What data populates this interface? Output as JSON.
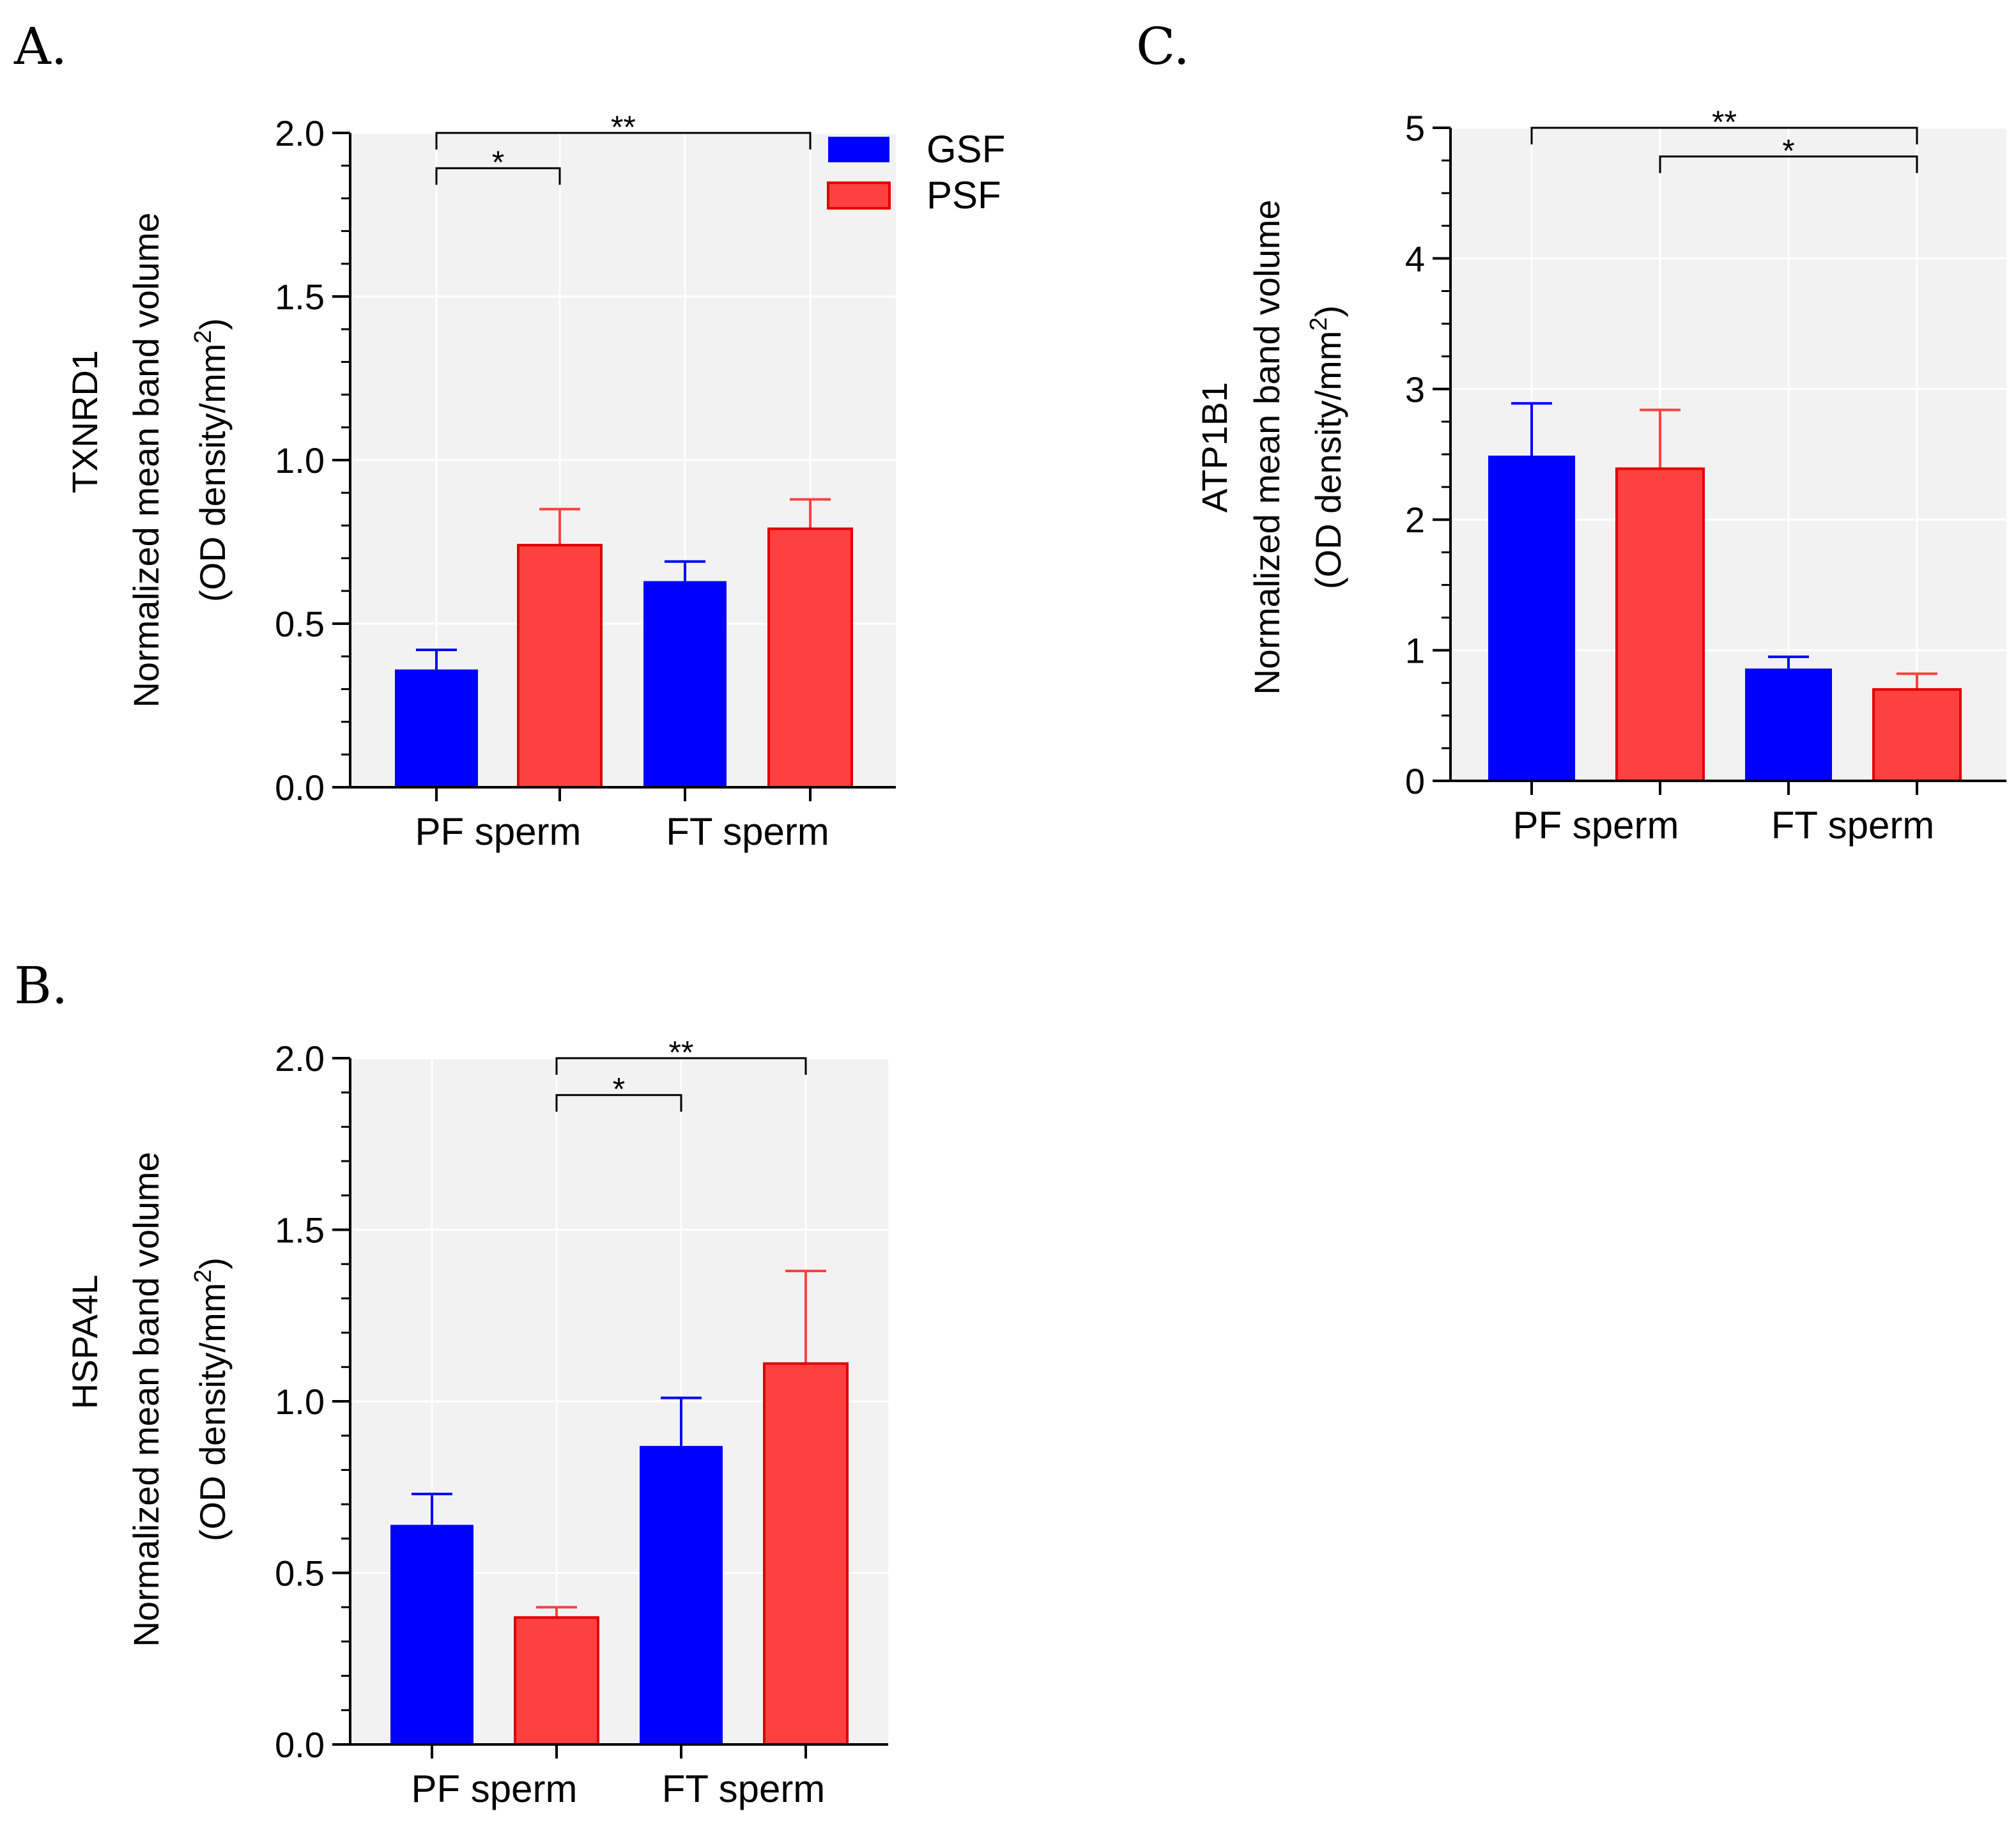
{
  "colors": {
    "GSF": "#0000ff",
    "PSF": "#ff4040",
    "plot_bg": "#f2f2f2",
    "grid": "#ffffff"
  },
  "legend": [
    {
      "label": "GSF"
    },
    {
      "label": "PSF"
    }
  ],
  "chart_data": [
    {
      "type": "bar",
      "panel": "A.",
      "protein": "TXNRD1",
      "ylabel_main": "Normalized mean band volume",
      "ylabel_unit_pre": "(OD density/mm",
      "ylabel_unit_sup": "2",
      "ylabel_unit_post": ")",
      "ylim": [
        0,
        2.0
      ],
      "yticks": [
        "0.0",
        "0.5",
        "1.0",
        "1.5",
        "2.0"
      ],
      "ytick_values": [
        0,
        0.5,
        1.0,
        1.5,
        2.0
      ],
      "minor_step": 0.1,
      "categories": [
        "PF sperm",
        "FT sperm"
      ],
      "series": [
        {
          "name": "GSF",
          "values": [
            0.36,
            0.63
          ],
          "errors": [
            0.06,
            0.06
          ]
        },
        {
          "name": "PSF",
          "values": [
            0.74,
            0.79
          ],
          "errors": [
            0.11,
            0.09
          ]
        }
      ],
      "bar_styles": [
        "solid",
        "solid",
        "solid",
        "solid"
      ],
      "significance": [
        {
          "from": 0,
          "to": 3,
          "label": "**",
          "y": 2.0
        },
        {
          "from": 0,
          "to": 1,
          "label": "*",
          "y": 1.9
        }
      ]
    },
    {
      "type": "bar",
      "panel": "B.",
      "protein": "HSPA4L",
      "ylabel_main": "Normalized mean band volume",
      "ylabel_unit_pre": "(OD density/mm",
      "ylabel_unit_sup": "2",
      "ylabel_unit_post": ")",
      "ylim": [
        0,
        2.0
      ],
      "yticks": [
        "0.0",
        "0.5",
        "1.0",
        "1.5",
        "2.0"
      ],
      "ytick_values": [
        0,
        0.5,
        1.0,
        1.5,
        2.0
      ],
      "minor_step": 0.1,
      "categories": [
        "PF sperm",
        "FT sperm"
      ],
      "series": [
        {
          "name": "GSF",
          "values": [
            0.64,
            0.87
          ],
          "errors": [
            0.09,
            0.14
          ]
        },
        {
          "name": "PSF",
          "values": [
            0.37,
            1.11
          ],
          "errors": [
            0.03,
            0.27
          ]
        }
      ],
      "bar_styles": [
        "solid",
        "solid",
        "solid",
        "solid"
      ],
      "significance": [
        {
          "from": 1,
          "to": 3,
          "label": "**",
          "y": 2.0
        },
        {
          "from": 1,
          "to": 2,
          "label": "*",
          "y": 1.9
        }
      ]
    },
    {
      "type": "bar",
      "panel": "C.",
      "protein": "ATP1B1",
      "ylabel_main": "Normalized mean band volume",
      "ylabel_unit_pre": "(OD density/mm",
      "ylabel_unit_sup": "2",
      "ylabel_unit_post": ")",
      "ylim": [
        0,
        5
      ],
      "yticks": [
        "0",
        "1",
        "2",
        "3",
        "4",
        "5"
      ],
      "ytick_values": [
        0,
        1,
        2,
        3,
        4,
        5
      ],
      "minor_step": 0.25,
      "categories": [
        "PF sperm",
        "FT sperm"
      ],
      "series": [
        {
          "name": "GSF",
          "values": [
            2.49,
            0.86
          ],
          "errors": [
            0.4,
            0.09
          ]
        },
        {
          "name": "PSF",
          "values": [
            2.39,
            0.7
          ],
          "errors": [
            0.45,
            0.12
          ]
        }
      ],
      "bar_styles": [
        "solid",
        "solid",
        "solid",
        "solid"
      ],
      "significance": [
        {
          "from": 0,
          "to": 3,
          "label": "**",
          "y": 5.0
        },
        {
          "from": 1,
          "to": 3,
          "label": "*",
          "y": 4.8
        }
      ]
    }
  ]
}
